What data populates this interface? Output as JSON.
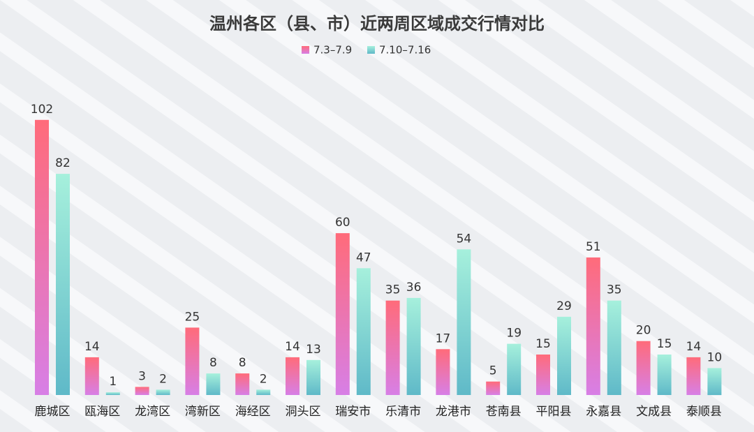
{
  "chart_data": {
    "type": "bar",
    "title": "温州各区（县、市）近两周区域成交行情对比",
    "xlabel": "",
    "ylabel": "",
    "ylim": [
      0,
      110
    ],
    "grid": false,
    "legend_position": "top-center",
    "categories": [
      "鹿城区",
      "瓯海区",
      "龙湾区",
      "湾新区",
      "海经区",
      "洞头区",
      "瑞安市",
      "乐清市",
      "龙港市",
      "苍南县",
      "平阳县",
      "永嘉县",
      "文成县",
      "泰顺县"
    ],
    "series": [
      {
        "name": "7.3–7.9",
        "values": [
          102,
          14,
          3,
          25,
          8,
          14,
          60,
          35,
          17,
          5,
          15,
          51,
          20,
          14
        ],
        "color_top": "#ff6b7a",
        "color_bottom": "#d77fe6"
      },
      {
        "name": "7.10–7.16",
        "values": [
          82,
          1,
          2,
          8,
          2,
          13,
          47,
          36,
          54,
          19,
          29,
          35,
          15,
          10
        ],
        "color_top": "#a6f0dc",
        "color_bottom": "#5fb9c8"
      }
    ]
  }
}
